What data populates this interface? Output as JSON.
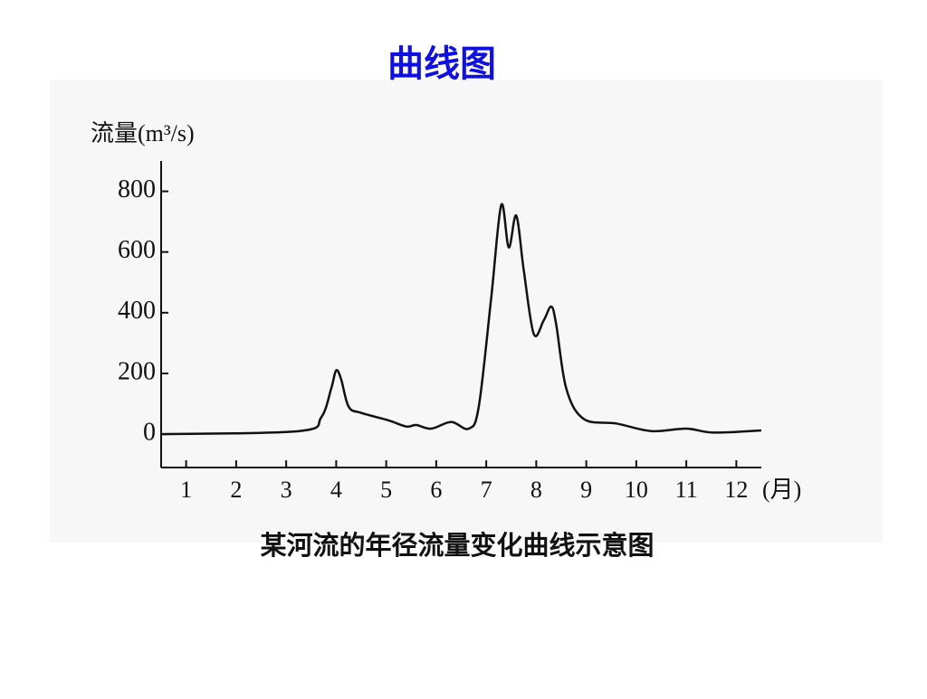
{
  "title": "曲线图",
  "chart_data": {
    "type": "line",
    "ylabel": "流量(m³/s)",
    "xlabel": "(月)",
    "caption": "某河流的年径流量变化曲线示意图",
    "x": [
      0.5,
      3.26,
      3.7,
      3.9,
      4.0,
      4.1,
      4.25,
      4.5,
      5.05,
      5.4,
      5.6,
      5.9,
      6.3,
      6.65,
      6.85,
      7.1,
      7.3,
      7.45,
      7.6,
      7.75,
      7.95,
      8.15,
      8.3,
      8.4,
      8.6,
      8.95,
      9.6,
      10.3,
      11.0,
      11.55,
      12.5
    ],
    "series": [
      {
        "color": "#111111",
        "values": [
          0,
          10,
          55,
          150,
          210,
          180,
          90,
          70,
          45,
          25,
          30,
          18,
          40,
          18,
          90,
          450,
          755,
          615,
          720,
          540,
          330,
          375,
          420,
          360,
          150,
          50,
          35,
          10,
          18,
          5,
          12
        ]
      }
    ],
    "xlim": [
      0.5,
      12.5
    ],
    "xticks": [
      1,
      2,
      3,
      4,
      5,
      6,
      7,
      8,
      9,
      10,
      11,
      12
    ],
    "ylim": [
      -110,
      900
    ],
    "yticks": [
      0,
      200,
      400,
      600,
      800
    ]
  }
}
